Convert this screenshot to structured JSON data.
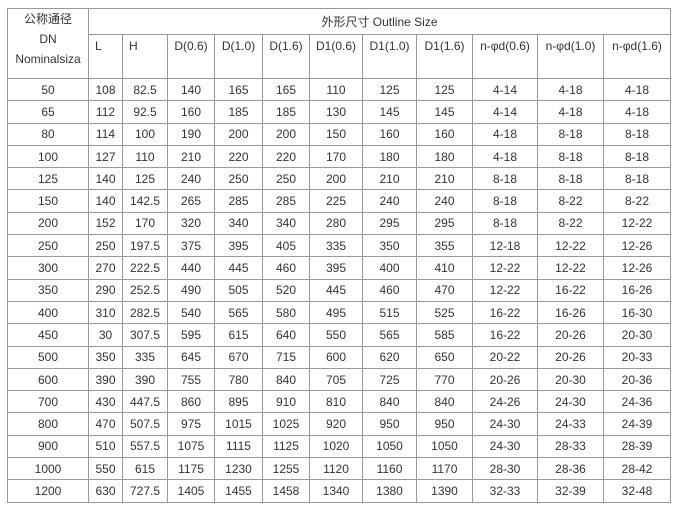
{
  "header": {
    "dn_cn": "公称通径",
    "dn_code": "DN",
    "dn_en": "Nominalsiza",
    "outline_size": "外形尺寸  Outline Size",
    "columns": [
      "L",
      "H",
      "D(0.6)",
      "D(1.0)",
      "D(1.6)",
      "D1(0.6)",
      "D1(1.0)",
      "D1(1.6)",
      "n-φd(0.6)",
      "n-φd(1.0)",
      "n-φd(1.6)"
    ]
  },
  "rows": [
    [
      "50",
      "108",
      "82.5",
      "140",
      "165",
      "165",
      "110",
      "125",
      "125",
      "4-14",
      "4-18",
      "4-18"
    ],
    [
      "65",
      "112",
      "92.5",
      "160",
      "185",
      "185",
      "130",
      "145",
      "145",
      "4-14",
      "4-18",
      "4-18"
    ],
    [
      "80",
      "114",
      "100",
      "190",
      "200",
      "200",
      "150",
      "160",
      "160",
      "4-18",
      "8-18",
      "8-18"
    ],
    [
      "100",
      "127",
      "110",
      "210",
      "220",
      "220",
      "170",
      "180",
      "180",
      "4-18",
      "8-18",
      "8-18"
    ],
    [
      "125",
      "140",
      "125",
      "240",
      "250",
      "250",
      "200",
      "210",
      "210",
      "8-18",
      "8-18",
      "8-18"
    ],
    [
      "150",
      "140",
      "142.5",
      "265",
      "285",
      "285",
      "225",
      "240",
      "240",
      "8-18",
      "8-22",
      "8-22"
    ],
    [
      "200",
      "152",
      "170",
      "320",
      "340",
      "340",
      "280",
      "295",
      "295",
      "8-18",
      "8-22",
      "12-22"
    ],
    [
      "250",
      "250",
      "197.5",
      "375",
      "395",
      "405",
      "335",
      "350",
      "355",
      "12-18",
      "12-22",
      "12-26"
    ],
    [
      "300",
      "270",
      "222.5",
      "440",
      "445",
      "460",
      "395",
      "400",
      "410",
      "12-22",
      "12-22",
      "12-26"
    ],
    [
      "350",
      "290",
      "252.5",
      "490",
      "505",
      "520",
      "445",
      "460",
      "470",
      "12-22",
      "16-22",
      "16-26"
    ],
    [
      "400",
      "310",
      "282.5",
      "540",
      "565",
      "580",
      "495",
      "515",
      "525",
      "16-22",
      "16-26",
      "16-30"
    ],
    [
      "450",
      "30",
      "307.5",
      "595",
      "615",
      "640",
      "550",
      "565",
      "585",
      "16-22",
      "20-26",
      "20-30"
    ],
    [
      "500",
      "350",
      "335",
      "645",
      "670",
      "715",
      "600",
      "620",
      "650",
      "20-22",
      "20-26",
      "20-33"
    ],
    [
      "600",
      "390",
      "390",
      "755",
      "780",
      "840",
      "705",
      "725",
      "770",
      "20-26",
      "20-30",
      "20-36"
    ],
    [
      "700",
      "430",
      "447.5",
      "860",
      "895",
      "910",
      "810",
      "840",
      "840",
      "24-26",
      "24-30",
      "24-36"
    ],
    [
      "800",
      "470",
      "507.5",
      "975",
      "1015",
      "1025",
      "920",
      "950",
      "950",
      "24-30",
      "24-33",
      "24-39"
    ],
    [
      "900",
      "510",
      "557.5",
      "1075",
      "1115",
      "1125",
      "1020",
      "1050",
      "1050",
      "24-30",
      "28-33",
      "28-39"
    ],
    [
      "1000",
      "550",
      "615",
      "1175",
      "1230",
      "1255",
      "1120",
      "1160",
      "1170",
      "28-30",
      "28-36",
      "28-42"
    ],
    [
      "1200",
      "630",
      "727.5",
      "1405",
      "1455",
      "1458",
      "1340",
      "1380",
      "1390",
      "32-33",
      "32-39",
      "32-48"
    ]
  ]
}
